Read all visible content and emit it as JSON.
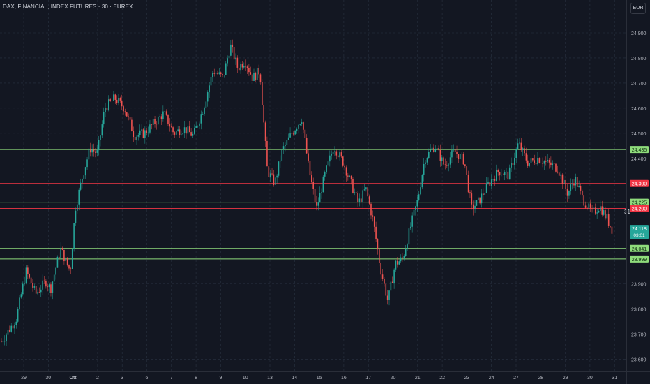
{
  "header": {
    "title": "DAX, FINANCIAL, INDEX FUTURES · 30 · EUREX",
    "currency_button": "EUR"
  },
  "colors": {
    "background": "#131722",
    "grid": "#2a3342",
    "up": "#26a69a",
    "down": "#ef5350",
    "support": "#8fdc7c",
    "resistance": "#f23645",
    "axis_text": "#b2b5be"
  },
  "chart_data": {
    "type": "candlestick",
    "symbol": "DAX, FINANCIAL, INDEX FUTURES · 30 · EUREX",
    "ylim": [
      23550,
      24950
    ],
    "y_ticks": [
      {
        "value": 24900,
        "label": "24.900"
      },
      {
        "value": 24800,
        "label": "24.800"
      },
      {
        "value": 24700,
        "label": "24.700"
      },
      {
        "value": 24600,
        "label": "24.600"
      },
      {
        "value": 24500,
        "label": "24.500"
      },
      {
        "value": 24400,
        "label": "24.400"
      },
      {
        "value": 23900,
        "label": "23.900"
      },
      {
        "value": 23800,
        "label": "23.800"
      },
      {
        "value": 23700,
        "label": "23.700"
      },
      {
        "value": 23600,
        "label": "23.600"
      }
    ],
    "x_ticks": [
      "29",
      "30",
      "Ott",
      "2",
      "3",
      "6",
      "7",
      "8",
      "9",
      "10",
      "13",
      "14",
      "15",
      "16",
      "17",
      "20",
      "21",
      "22",
      "23",
      "24",
      "27",
      "28",
      "29",
      "30",
      "31"
    ],
    "price_path": [
      {
        "t": 0,
        "p": 23670
      },
      {
        "t": 0.6,
        "p": 23760
      },
      {
        "t": 1.0,
        "p": 23950
      },
      {
        "t": 1.4,
        "p": 23860
      },
      {
        "t": 1.8,
        "p": 23910
      },
      {
        "t": 2.0,
        "p": 23880
      },
      {
        "t": 2.4,
        "p": 24040
      },
      {
        "t": 2.8,
        "p": 23950
      },
      {
        "t": 3.0,
        "p": 24200
      },
      {
        "t": 3.3,
        "p": 24330
      },
      {
        "t": 3.6,
        "p": 24440
      },
      {
        "t": 3.9,
        "p": 24420
      },
      {
        "t": 4.2,
        "p": 24600
      },
      {
        "t": 4.6,
        "p": 24640
      },
      {
        "t": 5.0,
        "p": 24600
      },
      {
        "t": 5.4,
        "p": 24490
      },
      {
        "t": 5.8,
        "p": 24500
      },
      {
        "t": 6.2,
        "p": 24540
      },
      {
        "t": 6.6,
        "p": 24580
      },
      {
        "t": 7.0,
        "p": 24500
      },
      {
        "t": 7.4,
        "p": 24520
      },
      {
        "t": 7.8,
        "p": 24490
      },
      {
        "t": 8.2,
        "p": 24600
      },
      {
        "t": 8.6,
        "p": 24750
      },
      {
        "t": 9.0,
        "p": 24720
      },
      {
        "t": 9.3,
        "p": 24850
      },
      {
        "t": 9.6,
        "p": 24760
      },
      {
        "t": 9.9,
        "p": 24790
      },
      {
        "t": 10.2,
        "p": 24720
      },
      {
        "t": 10.5,
        "p": 24750
      },
      {
        "t": 10.8,
        "p": 24350
      },
      {
        "t": 11.1,
        "p": 24300
      },
      {
        "t": 11.4,
        "p": 24430
      },
      {
        "t": 11.8,
        "p": 24500
      },
      {
        "t": 12.2,
        "p": 24560
      },
      {
        "t": 12.5,
        "p": 24350
      },
      {
        "t": 12.8,
        "p": 24200
      },
      {
        "t": 13.1,
        "p": 24320
      },
      {
        "t": 13.5,
        "p": 24450
      },
      {
        "t": 13.9,
        "p": 24380
      },
      {
        "t": 14.2,
        "p": 24300
      },
      {
        "t": 14.5,
        "p": 24220
      },
      {
        "t": 14.8,
        "p": 24280
      },
      {
        "t": 15.1,
        "p": 24150
      },
      {
        "t": 15.4,
        "p": 23960
      },
      {
        "t": 15.7,
        "p": 23830
      },
      {
        "t": 16.0,
        "p": 23980
      },
      {
        "t": 16.3,
        "p": 24000
      },
      {
        "t": 16.6,
        "p": 24120
      },
      {
        "t": 16.9,
        "p": 24230
      },
      {
        "t": 17.2,
        "p": 24400
      },
      {
        "t": 17.6,
        "p": 24450
      },
      {
        "t": 18.0,
        "p": 24370
      },
      {
        "t": 18.4,
        "p": 24430
      },
      {
        "t": 18.8,
        "p": 24390
      },
      {
        "t": 19.1,
        "p": 24200
      },
      {
        "t": 19.4,
        "p": 24230
      },
      {
        "t": 19.8,
        "p": 24300
      },
      {
        "t": 20.2,
        "p": 24350
      },
      {
        "t": 20.6,
        "p": 24330
      },
      {
        "t": 21.0,
        "p": 24460
      },
      {
        "t": 21.4,
        "p": 24380
      },
      {
        "t": 21.8,
        "p": 24400
      },
      {
        "t": 22.2,
        "p": 24380
      },
      {
        "t": 22.6,
        "p": 24360
      },
      {
        "t": 23.0,
        "p": 24260
      },
      {
        "t": 23.3,
        "p": 24320
      },
      {
        "t": 23.6,
        "p": 24240
      },
      {
        "t": 24.0,
        "p": 24180
      },
      {
        "t": 24.3,
        "p": 24210
      },
      {
        "t": 24.6,
        "p": 24160
      },
      {
        "t": 24.8,
        "p": 24118
      }
    ],
    "horizontal_levels": [
      {
        "value": 24435,
        "label": "24.435",
        "kind": "support"
      },
      {
        "value": 24300,
        "label": "24.300",
        "kind": "resistance"
      },
      {
        "value": 24225,
        "label": "24.225",
        "kind": "support"
      },
      {
        "value": 24200,
        "label": "24.200",
        "kind": "resistance"
      },
      {
        "value": 24041,
        "label": "24.041",
        "kind": "support"
      },
      {
        "value": 23999,
        "label": "23.999",
        "kind": "support"
      }
    ],
    "last_price": {
      "value": 24118,
      "label": "24.118",
      "countdown": "03:01"
    },
    "day_marker": "31"
  }
}
